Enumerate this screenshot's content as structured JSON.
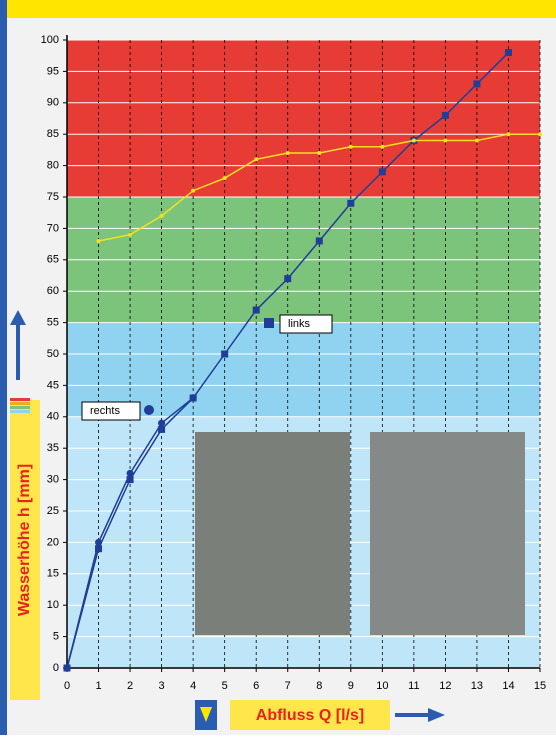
{
  "chart_data": {
    "type": "line",
    "x_label": "Abfluss Q [l/s]",
    "y_label": "Wasserhöhe h [mm]",
    "x": [
      0,
      1,
      2,
      3,
      4,
      5,
      6,
      7,
      8,
      9,
      10,
      11,
      12,
      13,
      14,
      15
    ],
    "series": [
      {
        "name": "links",
        "color": "#1f3d99",
        "marker": "square",
        "values": [
          0,
          19,
          30,
          38,
          43,
          50,
          57,
          62,
          68,
          74,
          79,
          84,
          88,
          93,
          98,
          null
        ]
      },
      {
        "name": "rechts",
        "color": "#1f3d99",
        "marker": "circle",
        "values": [
          0,
          20,
          31,
          39,
          43,
          null,
          null,
          null,
          null,
          null,
          null,
          null,
          null,
          null,
          null,
          null
        ]
      },
      {
        "color": "#f5e020",
        "marker": "dot",
        "values": [
          null,
          68,
          69,
          72,
          76,
          78,
          81,
          82,
          82,
          83,
          83,
          84,
          84,
          84,
          85,
          85
        ]
      }
    ],
    "bands": [
      {
        "from": 75,
        "to": 100,
        "color": "#e63c35"
      },
      {
        "from": 55,
        "to": 75,
        "color": "#7cc47c"
      },
      {
        "from": 40,
        "to": 55,
        "color": "#8fd3f0"
      },
      {
        "from": 0,
        "to": 40,
        "color": "#bfe6f8"
      }
    ],
    "xlim": [
      0,
      15
    ],
    "ylim": [
      0,
      100
    ],
    "xticks": [
      0,
      1,
      2,
      3,
      4,
      5,
      6,
      7,
      8,
      9,
      10,
      11,
      12,
      13,
      14,
      15
    ],
    "yticks": [
      0,
      5,
      10,
      15,
      20,
      25,
      30,
      35,
      40,
      45,
      50,
      55,
      60,
      65,
      70,
      75,
      80,
      85,
      90,
      95,
      100
    ],
    "grid": true
  }
}
